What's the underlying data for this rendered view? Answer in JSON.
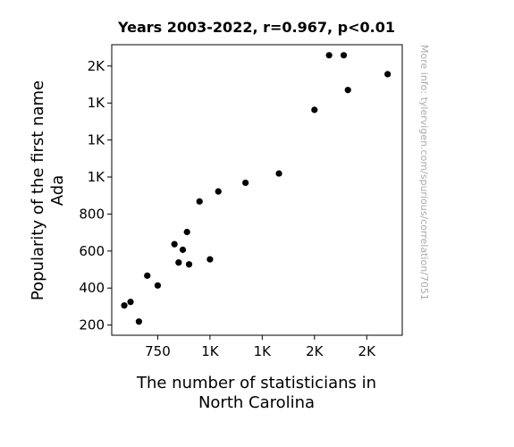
{
  "chart_data": {
    "type": "scatter",
    "title": "Years 2003-2022, r=0.967, p<0.01",
    "xlabel": [
      "The number of statisticians in",
      "North Carolina"
    ],
    "ylabel": [
      "Popularity of the first name",
      "Ada"
    ],
    "xlim": [
      530,
      1920
    ],
    "ylim": [
      145,
      1715
    ],
    "x_ticks": [
      {
        "value": 750,
        "label": "750"
      },
      {
        "value": 1000,
        "label": "1K"
      },
      {
        "value": 1250,
        "label": "1K"
      },
      {
        "value": 1500,
        "label": "2K"
      },
      {
        "value": 1750,
        "label": "2K"
      }
    ],
    "y_ticks": [
      {
        "value": 200,
        "label": "200"
      },
      {
        "value": 400,
        "label": "400"
      },
      {
        "value": 600,
        "label": "600"
      },
      {
        "value": 800,
        "label": "800"
      },
      {
        "value": 1000,
        "label": "1K"
      },
      {
        "value": 1200,
        "label": "1K"
      },
      {
        "value": 1400,
        "label": "1K"
      },
      {
        "value": 1600,
        "label": "2K"
      }
    ],
    "points": [
      {
        "x": 590,
        "y": 306
      },
      {
        "x": 620,
        "y": 325
      },
      {
        "x": 660,
        "y": 219
      },
      {
        "x": 700,
        "y": 467
      },
      {
        "x": 750,
        "y": 414
      },
      {
        "x": 830,
        "y": 637
      },
      {
        "x": 850,
        "y": 538
      },
      {
        "x": 870,
        "y": 607
      },
      {
        "x": 890,
        "y": 703
      },
      {
        "x": 900,
        "y": 528
      },
      {
        "x": 950,
        "y": 868
      },
      {
        "x": 1000,
        "y": 555
      },
      {
        "x": 1040,
        "y": 922
      },
      {
        "x": 1170,
        "y": 969
      },
      {
        "x": 1330,
        "y": 1019
      },
      {
        "x": 1500,
        "y": 1363
      },
      {
        "x": 1570,
        "y": 1658
      },
      {
        "x": 1640,
        "y": 1658
      },
      {
        "x": 1660,
        "y": 1470
      },
      {
        "x": 1850,
        "y": 1556
      }
    ],
    "marker_color": "#000000",
    "grid": false,
    "legend": "none"
  },
  "watermark": "More info: tylervigen.com/spurious/correlation/7051"
}
